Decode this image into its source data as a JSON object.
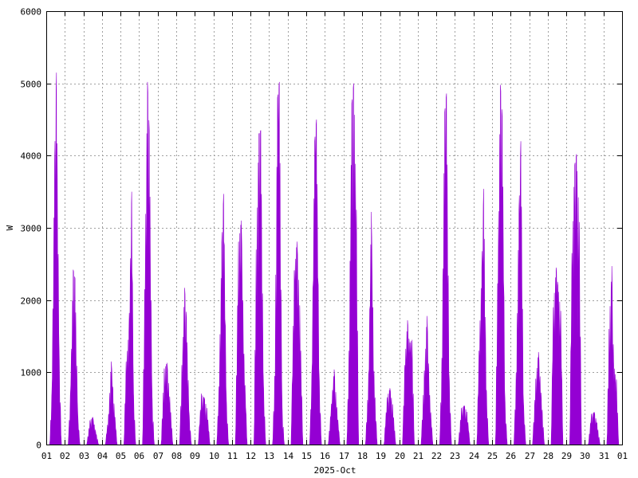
{
  "chart_data": {
    "type": "area",
    "xlabel": "2025-Oct",
    "ylabel": "W",
    "ylim": [
      0,
      6000
    ],
    "y_ticks": [
      "0",
      "1000",
      "2000",
      "3000",
      "4000",
      "5000",
      "6000"
    ],
    "x_ticks": [
      "01",
      "02",
      "03",
      "04",
      "05",
      "06",
      "07",
      "08",
      "09",
      "10",
      "11",
      "12",
      "13",
      "14",
      "15",
      "16",
      "17",
      "18",
      "19",
      "20",
      "21",
      "22",
      "23",
      "24",
      "25",
      "26",
      "27",
      "28",
      "29",
      "30",
      "31",
      "01"
    ],
    "grid": true,
    "color": "#9400d3",
    "series": [
      {
        "daily_peaks": [
          {
            "day": "01",
            "peaks": [
              [
                0.3,
                700
              ],
              [
                0.45,
                3950
              ],
              [
                0.55,
                5150
              ],
              [
                0.7,
                1200
              ]
            ]
          },
          {
            "day": "02",
            "peaks": [
              [
                0.3,
                700
              ],
              [
                0.45,
                2420
              ],
              [
                0.55,
                2300
              ],
              [
                0.7,
                400
              ]
            ]
          },
          {
            "day": "03",
            "peaks": [
              [
                0.35,
                330
              ],
              [
                0.5,
                380
              ],
              [
                0.65,
                200
              ]
            ]
          },
          {
            "day": "04",
            "peaks": [
              [
                0.35,
                400
              ],
              [
                0.5,
                1150
              ],
              [
                0.65,
                550
              ]
            ]
          },
          {
            "day": "05",
            "peaks": [
              [
                0.3,
                1150
              ],
              [
                0.45,
                1550
              ],
              [
                0.6,
                3500
              ],
              [
                0.7,
                700
              ]
            ]
          },
          {
            "day": "06",
            "peaks": [
              [
                0.3,
                2150
              ],
              [
                0.45,
                5020
              ],
              [
                0.55,
                4350
              ],
              [
                0.7,
                650
              ]
            ]
          },
          {
            "day": "07",
            "peaks": [
              [
                0.35,
                1050
              ],
              [
                0.5,
                1130
              ],
              [
                0.65,
                650
              ]
            ]
          },
          {
            "day": "08",
            "peaks": [
              [
                0.3,
                1100
              ],
              [
                0.45,
                2170
              ],
              [
                0.55,
                1750
              ],
              [
                0.7,
                400
              ]
            ]
          },
          {
            "day": "09",
            "peaks": [
              [
                0.35,
                700
              ],
              [
                0.5,
                650
              ],
              [
                0.65,
                500
              ]
            ]
          },
          {
            "day": "10",
            "peaks": [
              [
                0.3,
                800
              ],
              [
                0.45,
                2800
              ],
              [
                0.55,
                3470
              ],
              [
                0.7,
                600
              ]
            ]
          },
          {
            "day": "11",
            "peaks": [
              [
                0.35,
                2800
              ],
              [
                0.5,
                3100
              ],
              [
                0.65,
                1200
              ]
            ]
          },
          {
            "day": "12",
            "peaks": [
              [
                0.3,
                2700
              ],
              [
                0.45,
                4300
              ],
              [
                0.55,
                4350
              ],
              [
                0.7,
                800
              ]
            ]
          },
          {
            "day": "13",
            "peaks": [
              [
                0.3,
                950
              ],
              [
                0.45,
                4800
              ],
              [
                0.55,
                5020
              ],
              [
                0.7,
                500
              ]
            ]
          },
          {
            "day": "14",
            "peaks": [
              [
                0.35,
                2400
              ],
              [
                0.5,
                2810
              ],
              [
                0.65,
                1900
              ]
            ]
          },
          {
            "day": "15",
            "peaks": [
              [
                0.3,
                1000
              ],
              [
                0.45,
                4200
              ],
              [
                0.55,
                4500
              ],
              [
                0.7,
                900
              ]
            ]
          },
          {
            "day": "16",
            "peaks": [
              [
                0.35,
                550
              ],
              [
                0.5,
                1040
              ],
              [
                0.65,
                500
              ]
            ]
          },
          {
            "day": "17",
            "peaks": [
              [
                0.3,
                1300
              ],
              [
                0.45,
                4720
              ],
              [
                0.55,
                5000
              ],
              [
                0.7,
                3250
              ]
            ]
          },
          {
            "day": "18",
            "peaks": [
              [
                0.35,
                900
              ],
              [
                0.5,
                3220
              ],
              [
                0.65,
                950
              ]
            ]
          },
          {
            "day": "19",
            "peaks": [
              [
                0.35,
                650
              ],
              [
                0.5,
                780
              ],
              [
                0.65,
                550
              ]
            ]
          },
          {
            "day": "20",
            "peaks": [
              [
                0.3,
                1100
              ],
              [
                0.45,
                1720
              ],
              [
                0.55,
                1400
              ],
              [
                0.7,
                1450
              ]
            ]
          },
          {
            "day": "21",
            "peaks": [
              [
                0.35,
                1000
              ],
              [
                0.5,
                1780
              ],
              [
                0.65,
                650
              ]
            ]
          },
          {
            "day": "22",
            "peaks": [
              [
                0.3,
                1200
              ],
              [
                0.45,
                4600
              ],
              [
                0.55,
                4860
              ],
              [
                0.7,
                900
              ]
            ]
          },
          {
            "day": "23",
            "peaks": [
              [
                0.35,
                500
              ],
              [
                0.5,
                540
              ],
              [
                0.65,
                450
              ]
            ]
          },
          {
            "day": "24",
            "peaks": [
              [
                0.3,
                1300
              ],
              [
                0.45,
                2450
              ],
              [
                0.55,
                3540
              ],
              [
                0.7,
                750
              ]
            ]
          },
          {
            "day": "25",
            "peaks": [
              [
                0.3,
                2230
              ],
              [
                0.45,
                4980
              ],
              [
                0.55,
                4550
              ],
              [
                0.7,
                600
              ]
            ]
          },
          {
            "day": "26",
            "peaks": [
              [
                0.3,
                1000
              ],
              [
                0.45,
                3250
              ],
              [
                0.55,
                4200
              ],
              [
                0.7,
                550
              ]
            ]
          },
          {
            "day": "27",
            "peaks": [
              [
                0.35,
                900
              ],
              [
                0.5,
                1280
              ],
              [
                0.65,
                700
              ]
            ]
          },
          {
            "day": "28",
            "peaks": [
              [
                0.3,
                1900
              ],
              [
                0.45,
                2450
              ],
              [
                0.55,
                2200
              ],
              [
                0.7,
                1850
              ]
            ]
          },
          {
            "day": "29",
            "peaks": [
              [
                0.3,
                2650
              ],
              [
                0.45,
                3870
              ],
              [
                0.55,
                4020
              ],
              [
                0.7,
                3080
              ]
            ]
          },
          {
            "day": "30",
            "peaks": [
              [
                0.35,
                420
              ],
              [
                0.5,
                450
              ],
              [
                0.65,
                300
              ]
            ]
          },
          {
            "day": "31",
            "peaks": [
              [
                0.3,
                1600
              ],
              [
                0.45,
                2470
              ],
              [
                0.55,
                1100
              ],
              [
                0.7,
                900
              ]
            ]
          }
        ]
      }
    ]
  }
}
